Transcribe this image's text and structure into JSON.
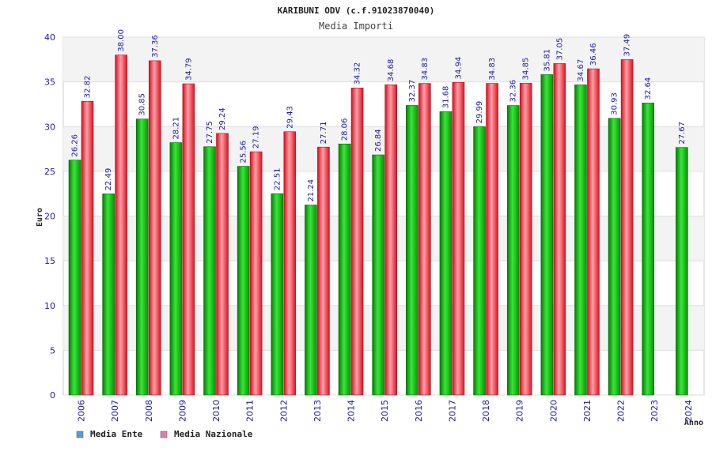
{
  "chart_data": {
    "type": "bar",
    "title": "KARIBUNI ODV (c.f.91023870040)",
    "subtitle": "Media Importi",
    "ylabel": "Euro",
    "xlabel": "Anno",
    "ylim": [
      0,
      40
    ],
    "yticks": [
      "0",
      "5",
      "10",
      "15",
      "20",
      "25",
      "30",
      "35",
      "40"
    ],
    "grid": true,
    "legend_position": "bottom-left",
    "categories": [
      "2006",
      "2007",
      "2008",
      "2009",
      "2010",
      "2011",
      "2012",
      "2013",
      "2014",
      "2015",
      "2016",
      "2017",
      "2018",
      "2019",
      "2020",
      "2021",
      "2022",
      "2023",
      "2024"
    ],
    "series": [
      {
        "name": "Media Ente",
        "legend_color": "#5b9bd5",
        "bar_color": "#12b512",
        "values": [
          26.26,
          22.49,
          30.85,
          28.21,
          27.75,
          25.56,
          22.51,
          21.24,
          28.06,
          26.84,
          32.37,
          31.68,
          29.99,
          32.36,
          35.81,
          34.67,
          30.93,
          32.64,
          27.67
        ],
        "labels": [
          "26.26",
          "22.49",
          "30.85",
          "28.21",
          "27.75",
          "25.56",
          "22.51",
          "21.24",
          "28.06",
          "26.84",
          "32.37",
          "31.68",
          "29.99",
          "32.36",
          "35.81",
          "34.67",
          "30.93",
          "32.64",
          "27.67"
        ]
      },
      {
        "name": "Media Nazionale",
        "legend_color": "#e07cb0",
        "bar_color": "#e8212e",
        "values": [
          32.82,
          38.0,
          37.36,
          34.79,
          29.24,
          27.19,
          29.43,
          27.71,
          34.32,
          34.68,
          34.83,
          34.94,
          34.83,
          34.85,
          37.05,
          36.46,
          37.49,
          null,
          null
        ],
        "labels": [
          "32.82",
          "38.00",
          "37.36",
          "34.79",
          "29.24",
          "27.19",
          "29.43",
          "27.71",
          "34.32",
          "34.68",
          "34.83",
          "34.94",
          "34.83",
          "34.85",
          "37.05",
          "36.46",
          "37.49",
          "",
          ""
        ]
      }
    ]
  }
}
